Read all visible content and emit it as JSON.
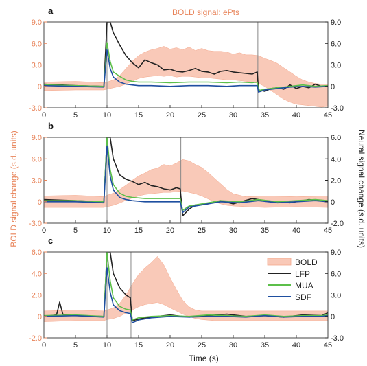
{
  "title": "BOLD signal: ePts",
  "xlabel": "Time (s)",
  "ylabel_left": "BOLD signal change (s.d. units)",
  "ylabel_right": "Neural signal change (s.d. units)",
  "colors": {
    "BOLD": "#f9c9b8",
    "LFP": "#222222",
    "MUA": "#5cbf4a",
    "SDF": "#1f4fa0",
    "leftAxis": "#e8845a",
    "rightAxis": "#222222"
  },
  "legend": {
    "placement": "inside right, panel c",
    "entries": [
      "BOLD",
      "LFP",
      "MUA",
      "SDF"
    ]
  },
  "chart_data": [
    {
      "type": "line",
      "panel": "a",
      "xlim": [
        0,
        45
      ],
      "ylim_left": [
        -3.0,
        9.0
      ],
      "ylim_right": [
        -3.0,
        9.0
      ],
      "left_ticks": [
        -3.0,
        0,
        3.0,
        6.0,
        9.0
      ],
      "left_tick_labels": [
        "-3.0",
        "0",
        "3.0",
        "6.0",
        "9.0"
      ],
      "right_ticks": [
        -3.0,
        0,
        3.0,
        6.0,
        9.0
      ],
      "right_tick_labels": [
        "-3.0",
        "0",
        "3.0",
        "6.0",
        "9.0"
      ],
      "x_ticks": [
        0,
        5,
        10,
        15,
        20,
        25,
        30,
        35,
        40,
        45
      ],
      "stim_on": 10,
      "stim_off": 33.9,
      "bold_envelope": {
        "x": [
          0,
          5,
          9.5,
          10,
          11,
          12,
          13,
          14,
          15,
          16,
          17,
          18,
          19,
          20,
          21,
          22,
          23,
          24,
          25,
          26,
          27,
          28,
          29,
          30,
          31,
          32,
          33,
          34,
          35,
          36,
          37,
          38,
          39,
          40,
          41,
          42,
          43,
          44,
          45
        ],
        "upper": [
          0.6,
          0.7,
          0.5,
          0.6,
          0.9,
          1.5,
          2.5,
          3.5,
          4.3,
          4.8,
          5.1,
          5.3,
          5.6,
          5.2,
          5.4,
          5.1,
          5.5,
          5.0,
          5.3,
          5.0,
          4.9,
          4.9,
          4.8,
          4.5,
          4.7,
          4.4,
          4.4,
          4.3,
          3.9,
          3.6,
          3.2,
          2.6,
          2.0,
          1.4,
          0.9,
          0.6,
          0.4,
          0.3,
          0.3
        ],
        "lower": [
          -0.6,
          -0.5,
          -0.5,
          -0.4,
          -0.2,
          0.0,
          0.3,
          0.7,
          1.1,
          1.3,
          1.4,
          1.5,
          1.4,
          1.5,
          1.3,
          1.4,
          1.4,
          1.3,
          1.2,
          1.2,
          1.1,
          1.0,
          0.9,
          0.9,
          0.8,
          0.7,
          0.6,
          0.4,
          0.0,
          -0.6,
          -1.2,
          -1.8,
          -2.2,
          -2.5,
          -2.6,
          -2.7,
          -2.8,
          -2.9,
          -2.8
        ]
      },
      "series": [
        {
          "name": "LFP",
          "x": [
            0,
            5,
            9.5,
            10,
            10.5,
            11,
            12,
            13,
            14,
            15,
            16,
            17,
            18,
            19,
            20,
            21,
            22,
            23,
            24,
            25,
            26,
            27,
            28,
            29,
            30,
            31,
            32,
            33,
            33.8,
            34,
            35,
            36,
            37,
            38,
            39,
            40,
            41,
            42,
            43,
            44,
            45
          ],
          "y": [
            0.3,
            0.1,
            0.0,
            9.0,
            9.0,
            7.5,
            5.8,
            4.3,
            3.3,
            2.6,
            3.7,
            3.3,
            3.0,
            2.3,
            2.4,
            2.1,
            2.0,
            2.2,
            2.5,
            2.1,
            2.0,
            1.7,
            2.1,
            2.2,
            2.0,
            1.9,
            1.8,
            1.7,
            2.0,
            -0.5,
            -0.7,
            -0.3,
            -0.2,
            -0.4,
            0.2,
            -0.3,
            0.0,
            -0.2,
            0.3,
            0.0,
            0.0
          ]
        },
        {
          "name": "MUA",
          "x": [
            0,
            5,
            9.5,
            10,
            10.5,
            11,
            12,
            13,
            14,
            15,
            17,
            20,
            23,
            26,
            29,
            31,
            33,
            33.8,
            34,
            35,
            37,
            39,
            41,
            43,
            45
          ],
          "y": [
            0.2,
            0.1,
            0.0,
            6.1,
            3.5,
            2.0,
            1.4,
            0.9,
            0.7,
            0.6,
            0.6,
            0.5,
            0.6,
            0.6,
            0.5,
            0.6,
            0.5,
            0.6,
            -0.6,
            -0.4,
            -0.2,
            0.0,
            0.2,
            0.0,
            0.1
          ]
        },
        {
          "name": "SDF",
          "x": [
            0,
            5,
            9.5,
            10,
            10.5,
            11,
            12,
            13,
            14,
            15,
            17,
            20,
            23,
            26,
            29,
            31,
            33,
            33.8,
            34,
            35,
            37,
            39,
            41,
            43,
            45
          ],
          "y": [
            0.1,
            0.0,
            -0.1,
            5.1,
            2.5,
            1.3,
            0.6,
            0.3,
            0.2,
            0.1,
            0.1,
            0.0,
            0.1,
            0.1,
            0.0,
            0.1,
            0.1,
            0.1,
            -0.8,
            -0.5,
            -0.3,
            -0.1,
            0.0,
            -0.1,
            0.0
          ]
        }
      ]
    },
    {
      "type": "line",
      "panel": "b",
      "xlim": [
        0,
        45
      ],
      "ylim_left": [
        -3.0,
        9.0
      ],
      "ylim_right": [
        -2.0,
        6.0
      ],
      "left_ticks": [
        -3.0,
        0,
        3.0,
        6.0,
        9.0
      ],
      "left_tick_labels": [
        "-3.0",
        "0",
        "3.0",
        "6.0",
        "9.0"
      ],
      "right_ticks": [
        -2.0,
        0,
        2.0,
        4.0,
        6.0
      ],
      "right_tick_labels": [
        "-2.0",
        "0",
        "2.0",
        "4.0",
        "6.0"
      ],
      "x_ticks": [
        0,
        5,
        10,
        15,
        20,
        25,
        30,
        35,
        40,
        45
      ],
      "stim_on": 10,
      "stim_off": 21.7,
      "bold_envelope": {
        "x": [
          0,
          5,
          9.5,
          10,
          11,
          12,
          13,
          14,
          15,
          16,
          17,
          18,
          19,
          20,
          21,
          22,
          23,
          24,
          25,
          26,
          27,
          28,
          29,
          30,
          32,
          35,
          40,
          45
        ],
        "upper": [
          0.8,
          0.9,
          0.7,
          0.9,
          1.2,
          1.7,
          2.3,
          3.0,
          3.6,
          4.0,
          4.5,
          4.7,
          5.2,
          5.0,
          5.4,
          5.9,
          5.7,
          5.2,
          4.8,
          4.1,
          3.3,
          2.5,
          1.7,
          1.1,
          0.7,
          0.8,
          0.7,
          0.8
        ],
        "lower": [
          -0.8,
          -0.8,
          -0.8,
          -0.7,
          -0.5,
          -0.2,
          0.2,
          0.5,
          0.8,
          1.0,
          1.1,
          1.2,
          1.3,
          1.3,
          1.4,
          1.5,
          1.3,
          1.1,
          0.8,
          0.4,
          0.0,
          -0.3,
          -0.5,
          -0.6,
          -0.7,
          -0.8,
          -0.7,
          -0.8
        ]
      },
      "series": [
        {
          "name": "LFP",
          "x": [
            0,
            5,
            9.5,
            10,
            10.5,
            11,
            12,
            13,
            14,
            15,
            16,
            17,
            18,
            19,
            20,
            21,
            21.6,
            22,
            23,
            24,
            26,
            28,
            30,
            33,
            36,
            39,
            42,
            45
          ],
          "y": [
            0.2,
            0.1,
            0.0,
            6.0,
            6.0,
            4.0,
            2.5,
            2.1,
            1.9,
            1.6,
            1.8,
            1.5,
            1.4,
            1.2,
            1.1,
            1.3,
            1.2,
            -1.3,
            -0.7,
            -0.3,
            -0.2,
            0.1,
            -0.2,
            0.3,
            0.0,
            -0.1,
            0.2,
            0.0
          ]
        },
        {
          "name": "MUA",
          "x": [
            0,
            5,
            9.5,
            10,
            10.5,
            11,
            12,
            13,
            14,
            16,
            18,
            20,
            21.6,
            22,
            23,
            25,
            28,
            31,
            34,
            37,
            40,
            43,
            45
          ],
          "y": [
            0.1,
            0.1,
            0.0,
            6.0,
            3.0,
            1.6,
            0.8,
            0.5,
            0.4,
            0.3,
            0.3,
            0.3,
            0.3,
            -0.8,
            -0.4,
            -0.2,
            0.1,
            0.0,
            0.2,
            0.0,
            0.1,
            0.2,
            0.1
          ]
        },
        {
          "name": "SDF",
          "x": [
            0,
            5,
            9.5,
            10,
            10.5,
            11,
            12,
            13,
            14,
            16,
            18,
            20,
            21.6,
            22,
            23,
            25,
            28,
            31,
            34,
            37,
            40,
            43,
            45
          ],
          "y": [
            0.0,
            0.0,
            -0.1,
            5.2,
            2.4,
            1.1,
            0.4,
            0.2,
            0.1,
            0.0,
            0.0,
            0.0,
            0.0,
            -1.0,
            -0.5,
            -0.3,
            0.0,
            -0.1,
            0.1,
            -0.1,
            0.0,
            0.1,
            0.0
          ]
        }
      ]
    },
    {
      "type": "line",
      "panel": "c",
      "xlim": [
        0,
        45
      ],
      "ylim_left": [
        -2.0,
        6.0
      ],
      "ylim_right": [
        -3.0,
        9.0
      ],
      "left_ticks": [
        -2.0,
        0,
        2.0,
        4.0,
        6.0
      ],
      "left_tick_labels": [
        "-2.0",
        "0",
        "2.0",
        "4.0",
        "6.0"
      ],
      "right_ticks": [
        -3.0,
        0,
        3.0,
        6.0,
        9.0
      ],
      "right_tick_labels": [
        "-3.0",
        "0",
        "3.0",
        "6.0",
        "9.0"
      ],
      "x_ticks": [
        0,
        5,
        10,
        15,
        20,
        25,
        30,
        35,
        40,
        45
      ],
      "stim_on": 10,
      "stim_off": 13.8,
      "bold_envelope": {
        "x": [
          0,
          5,
          9.5,
          10,
          11,
          12,
          13,
          14,
          15,
          16,
          17,
          18,
          19,
          20,
          21,
          22,
          23,
          24,
          25,
          27,
          30,
          35,
          40,
          45
        ],
        "upper": [
          0.5,
          0.6,
          0.5,
          0.6,
          0.8,
          1.2,
          2.0,
          3.0,
          3.9,
          4.5,
          5.0,
          5.6,
          4.8,
          3.6,
          2.5,
          1.5,
          0.9,
          0.6,
          0.5,
          0.5,
          0.5,
          0.5,
          0.5,
          0.5
        ],
        "lower": [
          -0.5,
          -0.4,
          -0.4,
          -0.3,
          -0.2,
          0.0,
          0.3,
          0.6,
          0.9,
          1.1,
          1.2,
          1.3,
          1.1,
          0.8,
          0.5,
          0.2,
          0.0,
          -0.2,
          -0.3,
          -0.4,
          -0.4,
          -0.4,
          -0.4,
          -0.4
        ]
      },
      "series": [
        {
          "name": "LFP",
          "x": [
            0,
            2,
            2.5,
            3,
            5,
            9.5,
            10,
            10.5,
            11,
            12,
            13,
            13.7,
            14,
            15,
            16,
            18,
            20,
            23,
            26,
            29,
            32,
            35,
            38,
            41,
            44,
            45
          ],
          "y": [
            0.0,
            0.2,
            2.0,
            0.3,
            0.1,
            0.0,
            9.0,
            9.0,
            6.0,
            4.0,
            3.0,
            2.6,
            -0.6,
            -0.4,
            -0.2,
            0.0,
            0.2,
            -0.1,
            0.1,
            0.3,
            0.0,
            0.1,
            -0.1,
            0.2,
            0.1,
            0.5
          ]
        },
        {
          "name": "MUA",
          "x": [
            0,
            5,
            9.5,
            10,
            10.5,
            11,
            12,
            13,
            13.7,
            14,
            15,
            17,
            20,
            23,
            26,
            29,
            32,
            35,
            38,
            41,
            44,
            45
          ],
          "y": [
            0.1,
            0.2,
            0.0,
            9.0,
            5.0,
            2.6,
            1.4,
            1.0,
            0.9,
            -0.5,
            -0.2,
            0.0,
            0.1,
            0.0,
            0.2,
            0.1,
            0.0,
            0.2,
            0.0,
            0.1,
            0.1,
            0.2
          ]
        },
        {
          "name": "SDF",
          "x": [
            0,
            5,
            9.5,
            10,
            10.5,
            11,
            12,
            13,
            13.7,
            14,
            15,
            17,
            20,
            23,
            26,
            29,
            32,
            35,
            38,
            41,
            44,
            45
          ],
          "y": [
            0.0,
            0.1,
            -0.1,
            6.8,
            3.4,
            1.6,
            0.8,
            0.5,
            0.4,
            -0.9,
            -0.5,
            -0.2,
            0.0,
            -0.1,
            0.0,
            0.0,
            -0.1,
            0.1,
            -0.1,
            0.0,
            0.0,
            0.1
          ]
        }
      ]
    }
  ]
}
